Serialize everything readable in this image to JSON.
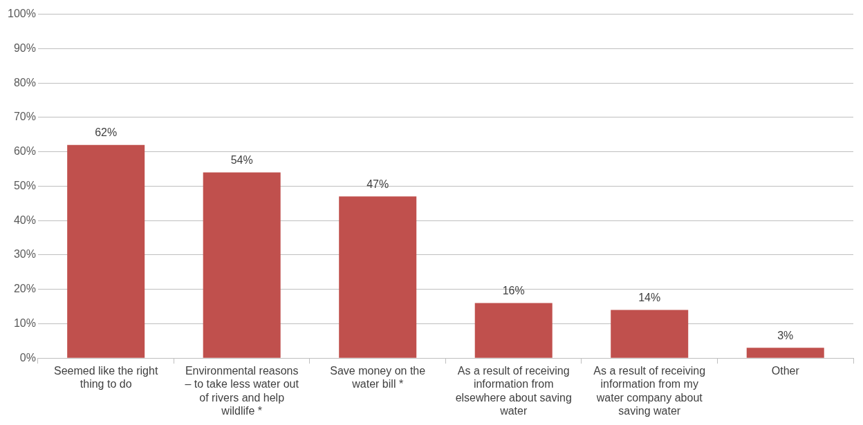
{
  "chart_data": {
    "type": "bar",
    "categories": [
      "Seemed like the right thing to do",
      "Environmental reasons – to take less water out of rivers and help wildlife *",
      "Save money on the water bill *",
      "As a result of receiving information from elsewhere about saving water",
      "As a result of receiving information from my water company about saving water",
      "Other"
    ],
    "values": [
      62,
      54,
      47,
      16,
      14,
      3
    ],
    "value_labels": [
      "62%",
      "54%",
      "47%",
      "16%",
      "14%",
      "3%"
    ],
    "color": "#c0504d",
    "ylim": [
      0,
      100
    ],
    "yticks": [
      {
        "value": 0,
        "label": "0%"
      },
      {
        "value": 10,
        "label": "10%"
      },
      {
        "value": 20,
        "label": "20%"
      },
      {
        "value": 30,
        "label": "30%"
      },
      {
        "value": 40,
        "label": "40%"
      },
      {
        "value": 50,
        "label": "50%"
      },
      {
        "value": 60,
        "label": "60%"
      },
      {
        "value": 70,
        "label": "70%"
      },
      {
        "value": 80,
        "label": "80%"
      },
      {
        "value": 90,
        "label": "90%"
      },
      {
        "value": 100,
        "label": "100%"
      }
    ],
    "grid": "y",
    "legend": false
  }
}
